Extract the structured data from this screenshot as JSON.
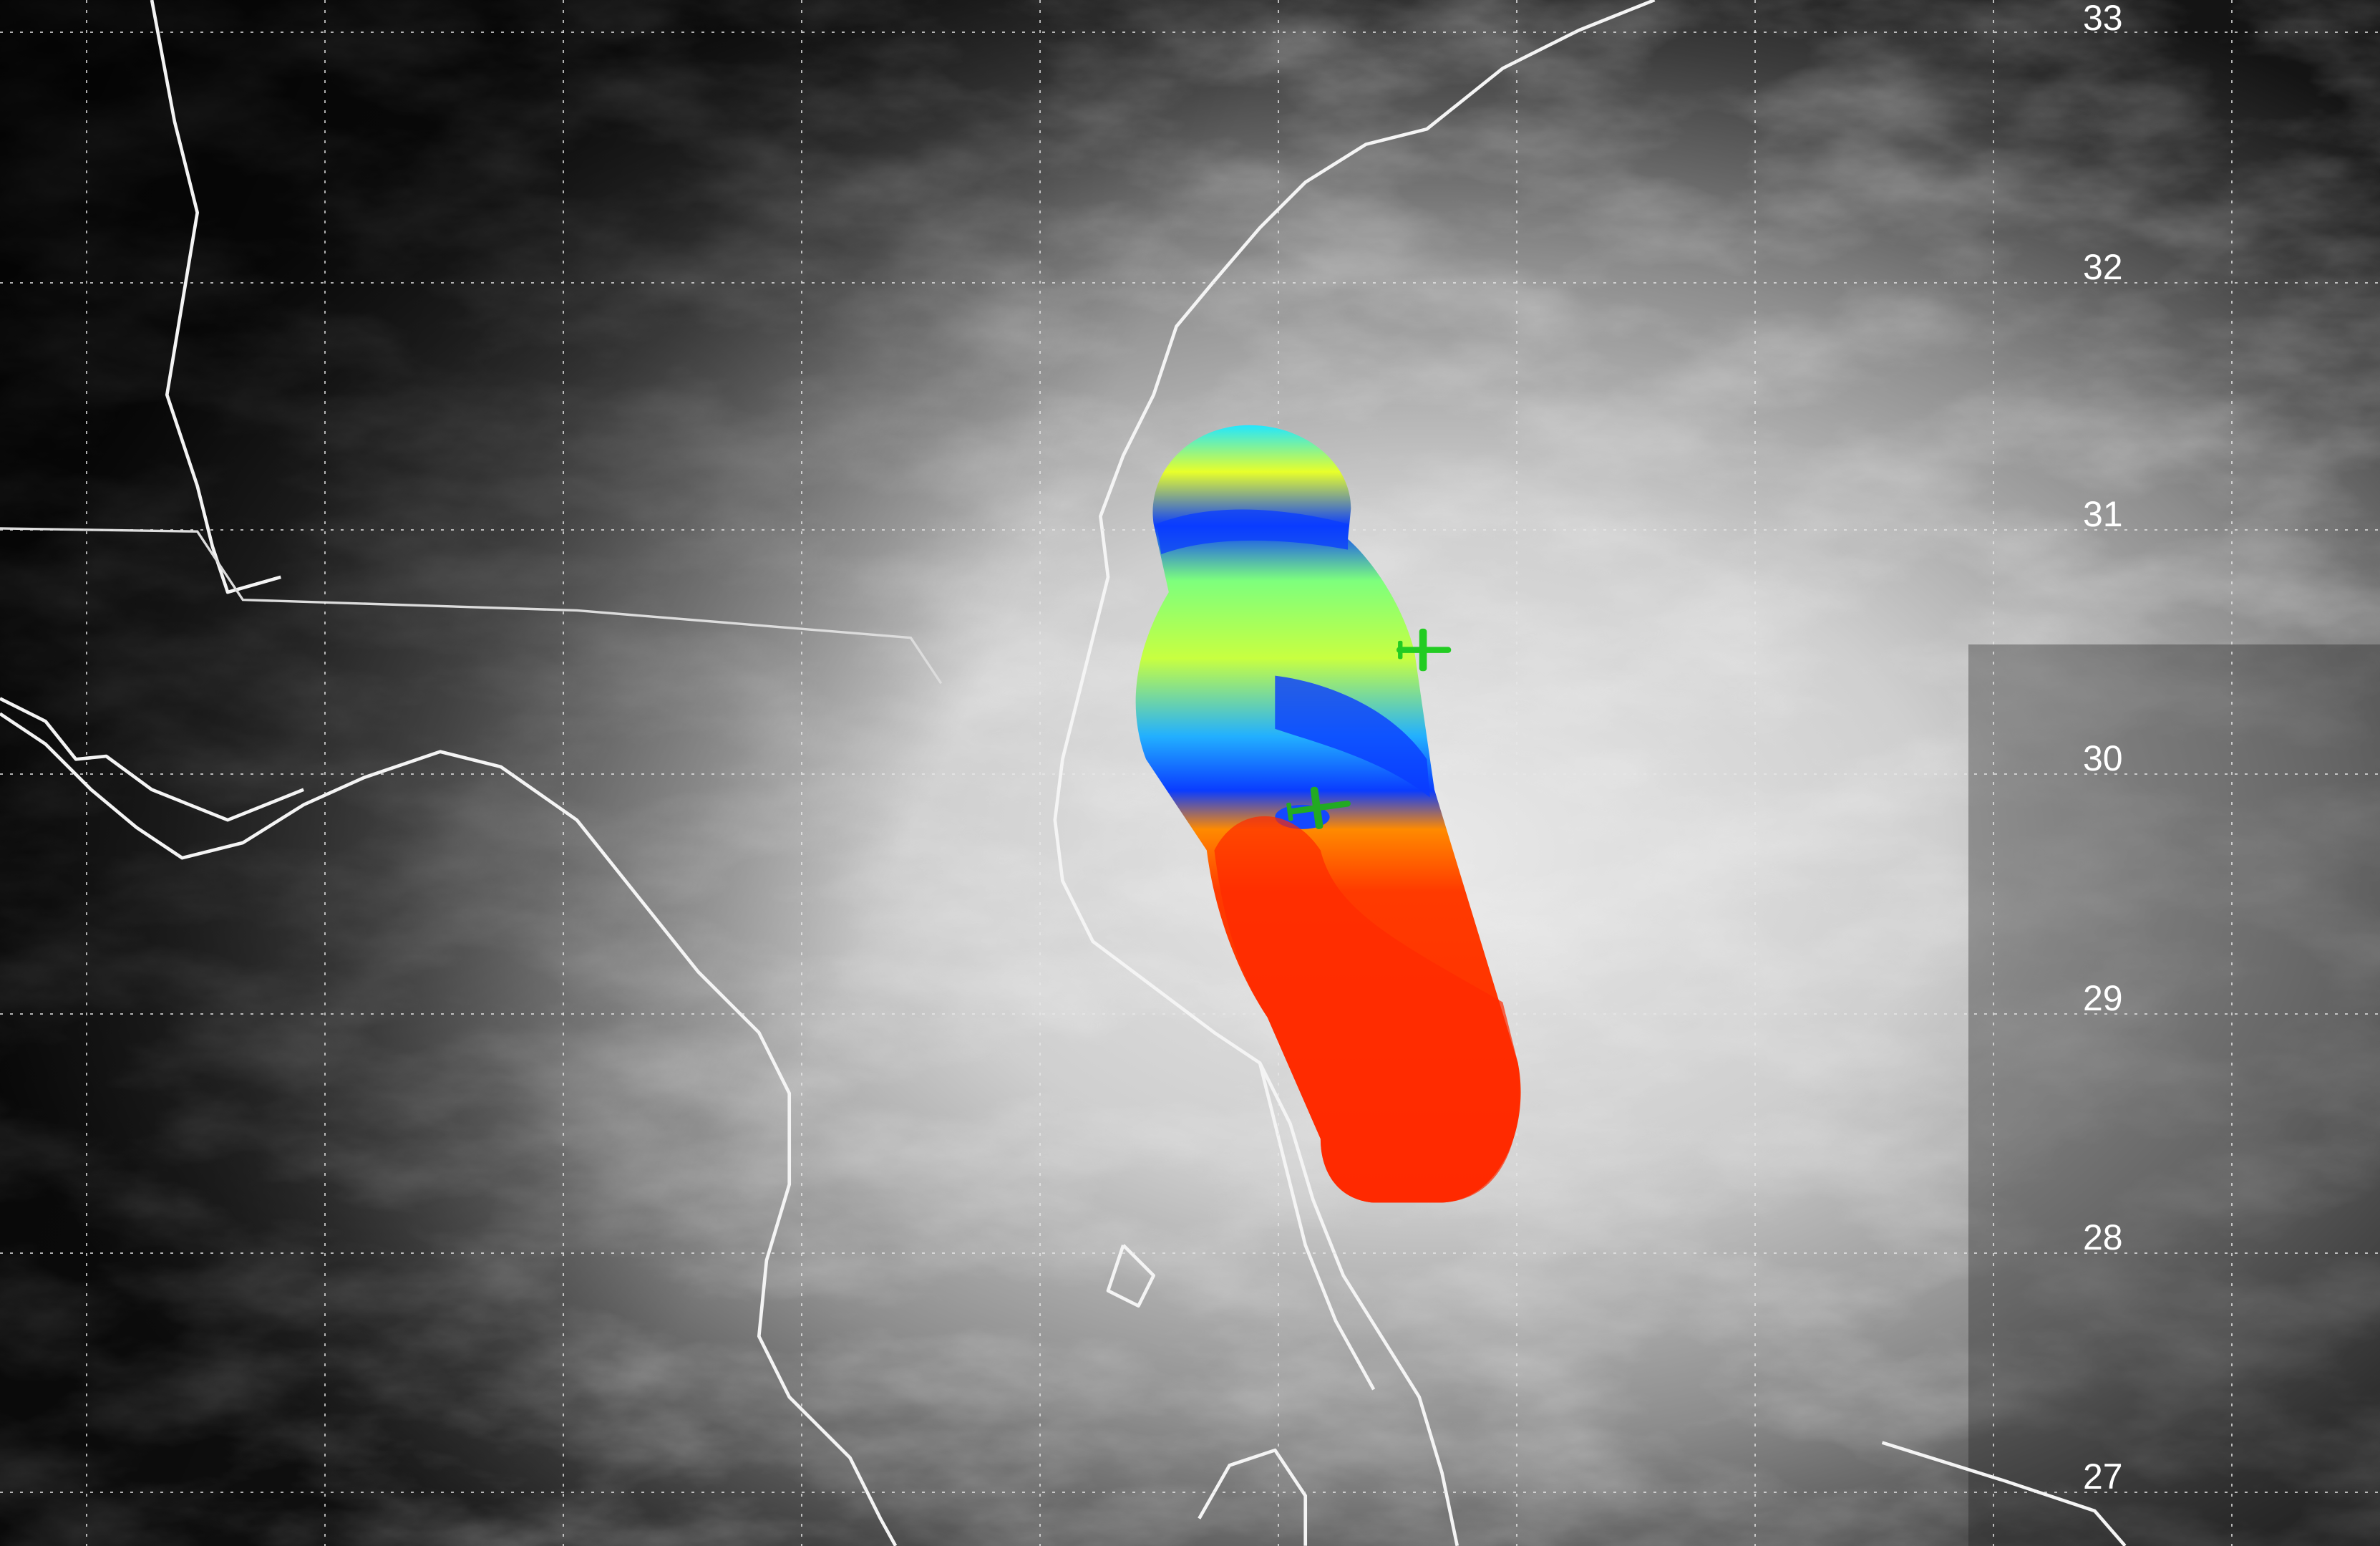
{
  "map": {
    "latitude_labels": [
      "33",
      "32",
      "31",
      "30",
      "29",
      "28",
      "27"
    ],
    "imagery": "satellite-cloud-imagery-grayscale",
    "overlay": "airborne-radar-swath",
    "colors": {
      "overlay_red": "#ff2a00",
      "overlay_orange": "#ff8a00",
      "overlay_yellow": "#e8ff2a",
      "overlay_green": "#7dff7d",
      "overlay_cyan": "#22e6ff",
      "overlay_blue": "#0a3cff",
      "aircraft": "#22cc22",
      "coastline": "#f4f4f4",
      "gridline": "#e8e8e8"
    },
    "icons": [
      "aircraft-icon",
      "aircraft-icon"
    ]
  }
}
